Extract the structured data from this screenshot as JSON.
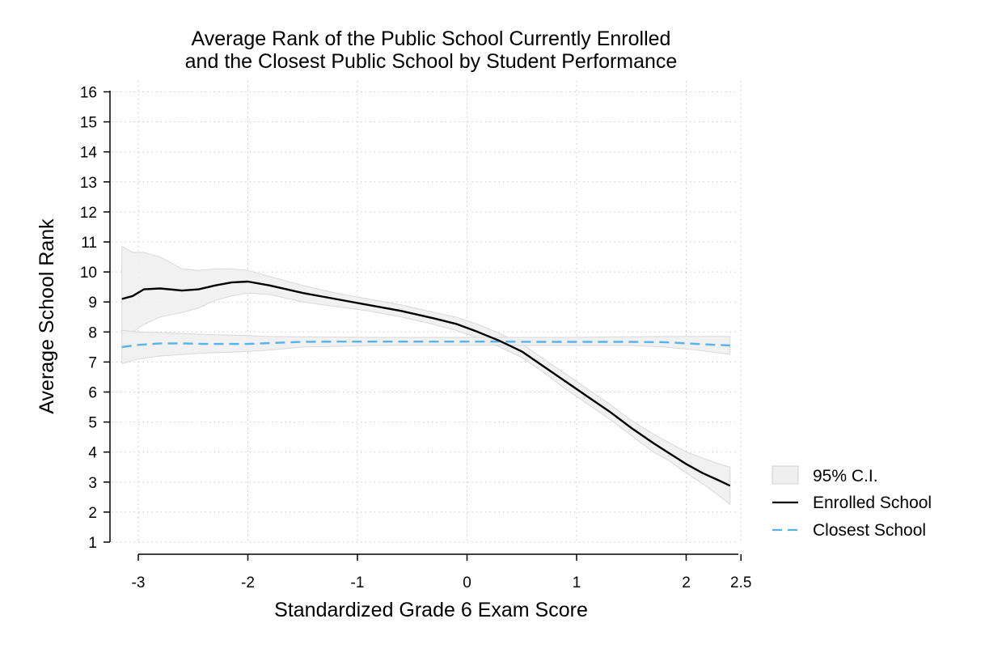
{
  "chart_data": {
    "type": "line",
    "title": [
      "Average Rank of the Public School Currently Enrolled",
      "and the Closest Public School by Student Performance"
    ],
    "xlabel": "Standardized Grade 6 Exam Score",
    "ylabel": "Average School Rank",
    "xlim": [
      -3.25,
      2.5
    ],
    "ylim": [
      1,
      16
    ],
    "xticks": [
      -3,
      -2,
      -1,
      0,
      1,
      2,
      2.5
    ],
    "xtick_labels": [
      "-3",
      "-2",
      "-1",
      "0",
      "1",
      "2",
      "2.5"
    ],
    "yticks": [
      1,
      2,
      3,
      4,
      5,
      6,
      7,
      8,
      9,
      10,
      11,
      12,
      13,
      14,
      15,
      16
    ],
    "ytick_labels": [
      "1",
      "2",
      "3",
      "4",
      "5",
      "6",
      "7",
      "8",
      "9",
      "10",
      "11",
      "12",
      "13",
      "14",
      "15",
      "16"
    ],
    "grid": true,
    "legend_position": "right",
    "legend": [
      {
        "key": "ci",
        "label": "95% C.I."
      },
      {
        "key": "enrolled",
        "label": "Enrolled School"
      },
      {
        "key": "closest",
        "label": "Closest School"
      }
    ],
    "colors": {
      "enrolled": "#000000",
      "closest": "#56b4e9",
      "ci_fill": "#efefef",
      "ci_edge": "#d8d8d8",
      "grid": "#c8c8c8",
      "axis": "#000000"
    },
    "series": [
      {
        "name": "Enrolled School",
        "x": [
          -3.15,
          -3.05,
          -2.95,
          -2.8,
          -2.6,
          -2.45,
          -2.3,
          -2.15,
          -2.0,
          -1.8,
          -1.5,
          -1.2,
          -0.9,
          -0.6,
          -0.3,
          -0.1,
          0.1,
          0.3,
          0.5,
          0.7,
          0.9,
          1.1,
          1.3,
          1.5,
          1.7,
          1.85,
          2.0,
          2.15,
          2.3,
          2.4
        ],
        "y": [
          9.1,
          9.2,
          9.42,
          9.45,
          9.38,
          9.42,
          9.55,
          9.65,
          9.68,
          9.55,
          9.3,
          9.1,
          8.9,
          8.7,
          8.45,
          8.27,
          8.0,
          7.7,
          7.35,
          6.85,
          6.35,
          5.85,
          5.35,
          4.8,
          4.3,
          3.95,
          3.6,
          3.3,
          3.05,
          2.88
        ],
        "lower": [
          7.95,
          8.0,
          8.25,
          8.5,
          8.65,
          8.8,
          9.05,
          9.2,
          9.3,
          9.25,
          9.0,
          8.85,
          8.7,
          8.5,
          8.25,
          8.05,
          7.8,
          7.5,
          7.15,
          6.65,
          6.1,
          5.6,
          5.1,
          4.55,
          4.0,
          3.7,
          3.3,
          2.95,
          2.55,
          2.25
        ],
        "upper": [
          10.85,
          10.65,
          10.65,
          10.5,
          10.1,
          10.05,
          10.1,
          10.1,
          10.05,
          9.85,
          9.55,
          9.3,
          9.1,
          8.9,
          8.65,
          8.5,
          8.25,
          7.95,
          7.6,
          7.1,
          6.6,
          6.1,
          5.6,
          5.05,
          4.6,
          4.3,
          4.0,
          3.8,
          3.6,
          3.5
        ]
      },
      {
        "name": "Closest School",
        "x": [
          -3.15,
          -3.0,
          -2.8,
          -2.6,
          -2.4,
          -2.2,
          -2.0,
          -1.8,
          -1.5,
          -1.2,
          -0.9,
          -0.6,
          -0.3,
          0.0,
          0.3,
          0.6,
          0.9,
          1.2,
          1.5,
          1.8,
          2.1,
          2.4
        ],
        "y": [
          7.5,
          7.57,
          7.62,
          7.62,
          7.6,
          7.6,
          7.6,
          7.63,
          7.67,
          7.68,
          7.68,
          7.68,
          7.68,
          7.68,
          7.68,
          7.67,
          7.67,
          7.67,
          7.67,
          7.66,
          7.6,
          7.55
        ],
        "lower": [
          6.95,
          7.1,
          7.2,
          7.25,
          7.3,
          7.32,
          7.35,
          7.4,
          7.5,
          7.52,
          7.55,
          7.56,
          7.56,
          7.56,
          7.56,
          7.55,
          7.55,
          7.55,
          7.55,
          7.5,
          7.4,
          7.25
        ],
        "upper": [
          8.05,
          8.0,
          7.98,
          7.95,
          7.92,
          7.9,
          7.88,
          7.85,
          7.84,
          7.83,
          7.82,
          7.82,
          7.82,
          7.82,
          7.82,
          7.82,
          7.82,
          7.83,
          7.84,
          7.85,
          7.85,
          7.85
        ]
      }
    ]
  }
}
